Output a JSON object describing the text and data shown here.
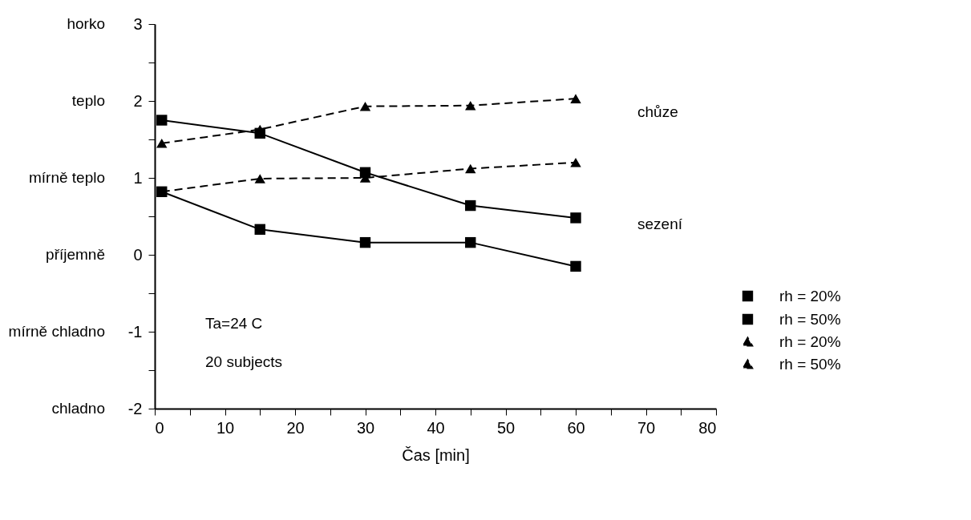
{
  "chart_data": {
    "type": "line",
    "xlabel": "Čas [min]",
    "x": [
      1,
      15,
      30,
      45,
      60
    ],
    "series": [
      {
        "name": "rh = 20%",
        "color": "#000000",
        "marker": "square",
        "line_style": "solid",
        "values": [
          0.82,
          0.33,
          0.16,
          0.16,
          -0.15
        ]
      },
      {
        "name": "rh = 50%",
        "color": "#000000",
        "marker": "square",
        "line_style": "solid",
        "values": [
          1.75,
          1.58,
          1.07,
          0.64,
          0.48
        ]
      },
      {
        "name": "rh = 20%",
        "color": "#000000",
        "marker": "triangle",
        "line_style": "dashed",
        "values": [
          0.82,
          0.99,
          1.0,
          1.12,
          1.2
        ]
      },
      {
        "name": "rh = 50%",
        "color": "#000000",
        "marker": "triangle",
        "line_style": "dashed",
        "values": [
          1.45,
          1.63,
          1.93,
          1.94,
          2.03
        ]
      }
    ],
    "xlim": [
      0,
      80
    ],
    "xticks": [
      0,
      {
        "value": 5,
        "label": null
      },
      10,
      {
        "value": 15,
        "label": null
      },
      20,
      {
        "value": 25,
        "label": null
      },
      30,
      {
        "value": 35,
        "label": null
      },
      40,
      {
        "value": 45,
        "label": null
      },
      50,
      {
        "value": 55,
        "label": null
      },
      60,
      {
        "value": 65,
        "label": null
      },
      70,
      {
        "value": 75,
        "label": null
      },
      80
    ],
    "ylim": [
      -2,
      3
    ],
    "yticks": [
      -2,
      {
        "value": -1.5,
        "label": null
      },
      -1,
      {
        "value": -0.5,
        "label": null
      },
      0,
      {
        "value": 0.5,
        "label": null
      },
      1,
      {
        "value": 1.5,
        "label": null
      },
      2,
      {
        "value": 2.5,
        "label": null
      },
      3
    ],
    "annotations": [
      "horko",
      "teplo",
      "mírně teplo",
      "příjemně",
      "mírně chladno",
      "chladno",
      "chůze",
      "sezení",
      "Ta=24 C",
      "20 subjects"
    ],
    "legend": "bottom right",
    "grid": false
  }
}
